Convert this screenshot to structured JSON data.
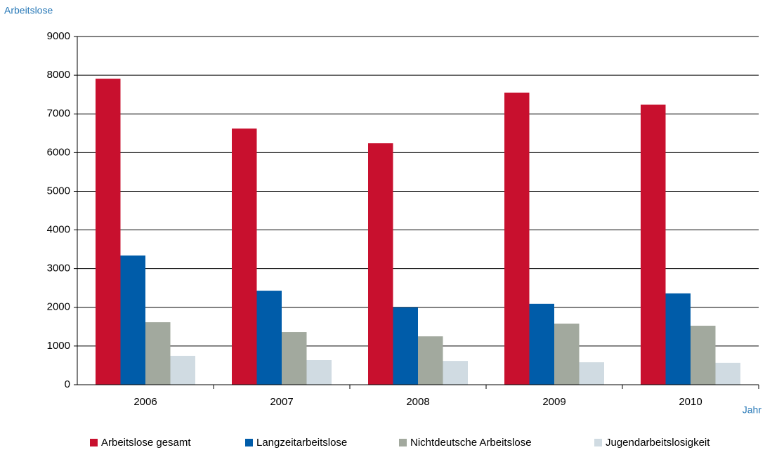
{
  "chart_data": {
    "type": "bar",
    "y_label": "Arbeitslose",
    "x_label": "Jahr",
    "categories": [
      "2006",
      "2007",
      "2008",
      "2009",
      "2010"
    ],
    "series": [
      {
        "name": "Arbeitslose gesamt",
        "color": "#c8102e",
        "values": [
          7910,
          6620,
          6240,
          7550,
          7240
        ]
      },
      {
        "name": "Langzeitarbeitslose",
        "color": "#005ca9",
        "values": [
          3340,
          2430,
          2000,
          2090,
          2360
        ]
      },
      {
        "name": "Nichtdeutsche Arbeitslose",
        "color": "#a2a99e",
        "values": [
          1615,
          1360,
          1250,
          1580,
          1525
        ]
      },
      {
        "name": "Jugendarbeitslosigkeit",
        "color": "#d0dbe2",
        "values": [
          745,
          635,
          615,
          580,
          565
        ]
      }
    ],
    "ylim": [
      0,
      9000
    ],
    "yticks": [
      0,
      1000,
      2000,
      3000,
      4000,
      5000,
      6000,
      7000,
      8000,
      9000
    ],
    "grid": true
  }
}
